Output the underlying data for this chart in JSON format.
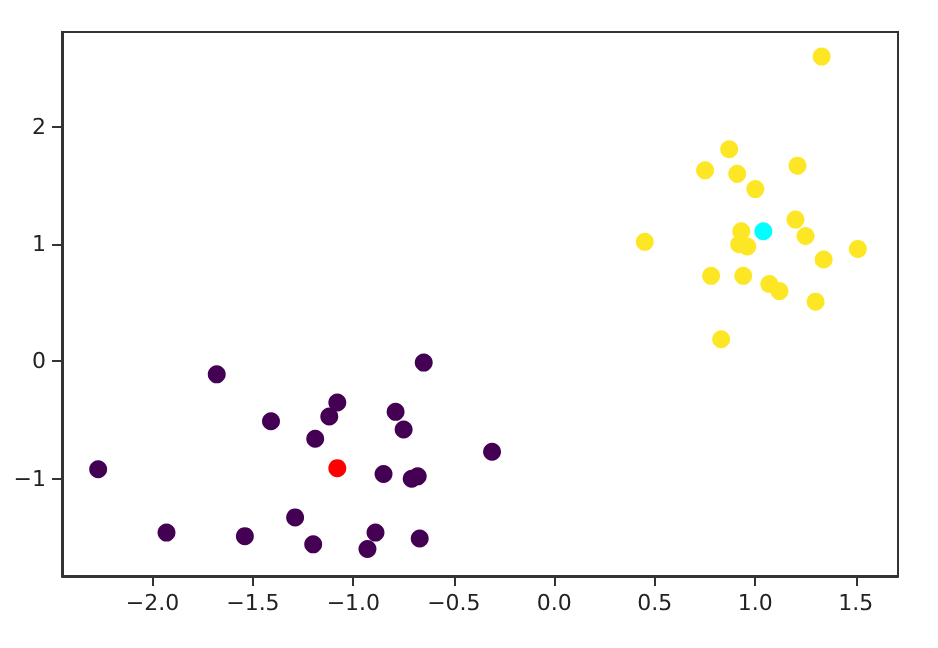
{
  "chart_data": {
    "type": "scatter",
    "marker": "circle",
    "grid": false,
    "xlim": [
      -2.45,
      1.71
    ],
    "ylim": [
      -1.83,
      2.81
    ],
    "xticks": [
      {
        "value": -2,
        "label": "−2.0"
      },
      {
        "value": -1.5,
        "label": "−1.5"
      },
      {
        "value": -1,
        "label": "−1.0"
      },
      {
        "value": -0.5,
        "label": "−0.5"
      },
      {
        "value": 0,
        "label": "0.0"
      },
      {
        "value": 0.5,
        "label": "0.5"
      },
      {
        "value": 1,
        "label": "1.0"
      },
      {
        "value": 1.5,
        "label": "1.5"
      }
    ],
    "yticks": [
      {
        "value": -1,
        "label": "−1"
      },
      0,
      1,
      2
    ],
    "series": [
      {
        "color": "#440154",
        "x": [
          -2.27,
          -1.93,
          -1.68,
          -1.54,
          -1.41,
          -1.29,
          -1.2,
          -1.19,
          -1.12,
          -1.08,
          -0.93,
          -0.89,
          -0.85,
          -0.79,
          -0.75,
          -0.71,
          -0.68,
          -0.67,
          -0.65,
          -0.31
        ],
        "values": [
          -0.92,
          -1.46,
          -0.11,
          -1.49,
          -0.51,
          -1.33,
          -1.56,
          -0.66,
          -0.47,
          -0.35,
          -1.6,
          -1.46,
          -0.96,
          -0.43,
          -0.58,
          -1.0,
          -0.98,
          -1.51,
          -0.01,
          -0.77
        ]
      },
      {
        "color": "#fde725",
        "x": [
          0.45,
          0.75,
          0.78,
          0.83,
          0.87,
          0.91,
          0.93,
          0.92,
          0.96,
          0.94,
          1.0,
          1.07,
          1.12,
          1.2,
          1.21,
          1.25,
          1.3,
          1.34,
          1.33,
          1.51
        ],
        "values": [
          1.02,
          1.63,
          0.73,
          0.19,
          1.81,
          1.6,
          1.11,
          1.0,
          0.98,
          0.73,
          1.47,
          0.66,
          0.6,
          1.21,
          1.67,
          1.07,
          0.51,
          0.87,
          2.6,
          0.96
        ]
      },
      {
        "color": "#ff0000",
        "x": [
          -1.08
        ],
        "values": [
          -0.91
        ]
      },
      {
        "color": "#00ffff",
        "x": [
          1.04
        ],
        "values": [
          1.11
        ]
      }
    ]
  }
}
